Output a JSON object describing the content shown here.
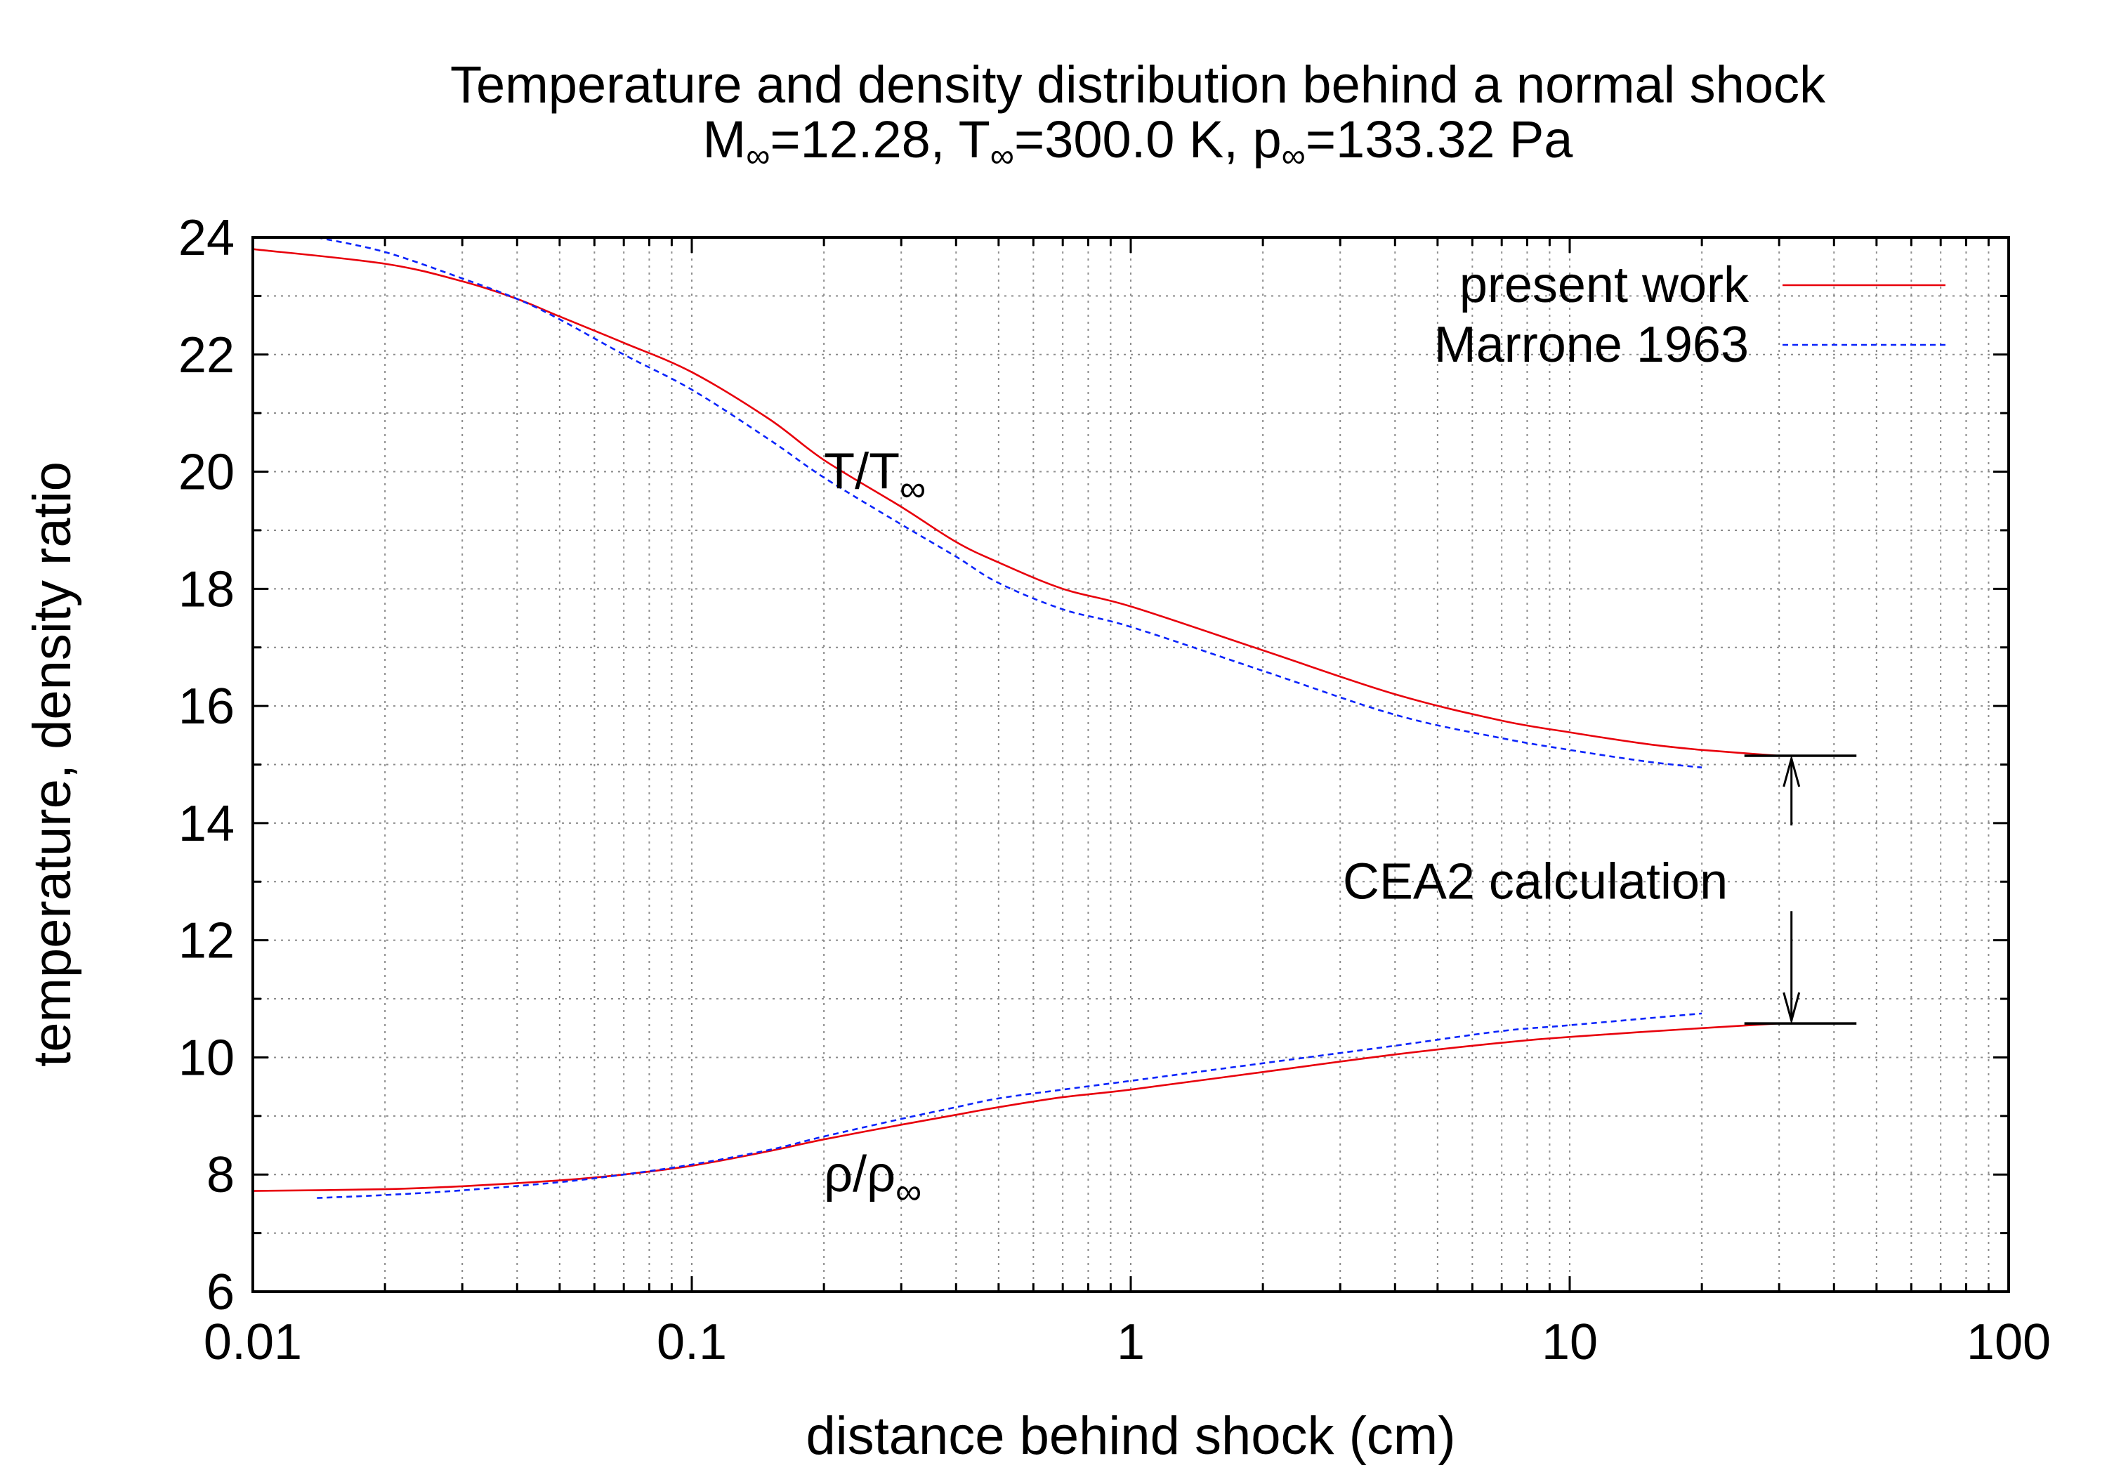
{
  "chart_data": {
    "type": "line",
    "title": "Temperature and density distribution behind a normal shock",
    "subtitle": {
      "parts": [
        "M",
        "∞",
        "=12.28, T",
        "∞",
        "=300.0 K, p",
        "∞",
        "=133.32 Pa"
      ]
    },
    "xlabel": "distance behind shock (cm)",
    "ylabel": "temperature, density ratio",
    "xscale": "log",
    "xlim": [
      0.01,
      100
    ],
    "ylim": [
      6,
      24
    ],
    "grid": true,
    "legend_position": "top-right",
    "xticks": [
      {
        "value": 0.01,
        "label": "0.01"
      },
      {
        "value": 0.1,
        "label": "0.1"
      },
      {
        "value": 1,
        "label": "1"
      },
      {
        "value": 10,
        "label": "10"
      },
      {
        "value": 100,
        "label": "100"
      }
    ],
    "yticks": [
      {
        "value": 6,
        "label": "6"
      },
      {
        "value": 8,
        "label": "8"
      },
      {
        "value": 10,
        "label": "10"
      },
      {
        "value": 12,
        "label": "12"
      },
      {
        "value": 14,
        "label": "14"
      },
      {
        "value": 16,
        "label": "16"
      },
      {
        "value": 18,
        "label": "18"
      },
      {
        "value": 20,
        "label": "20"
      },
      {
        "value": 22,
        "label": "22"
      },
      {
        "value": 24,
        "label": "24"
      }
    ],
    "series": [
      {
        "name": "present work",
        "quantity": "T",
        "color": "#e8000b",
        "dash": "solid",
        "x": [
          0.01,
          0.02,
          0.03,
          0.04,
          0.05,
          0.07,
          0.1,
          0.15,
          0.2,
          0.3,
          0.4,
          0.5,
          0.7,
          1,
          2,
          4,
          7,
          10,
          15,
          20,
          30
        ],
        "y": [
          23.8,
          23.55,
          23.25,
          22.95,
          22.65,
          22.2,
          21.7,
          20.9,
          20.2,
          19.4,
          18.8,
          18.45,
          18.0,
          17.7,
          16.95,
          16.2,
          15.75,
          15.55,
          15.35,
          15.25,
          15.15
        ]
      },
      {
        "name": "Marrone 1963",
        "quantity": "T",
        "color": "#0b24fb",
        "dash": "dashed",
        "x": [
          0.014,
          0.02,
          0.03,
          0.04,
          0.05,
          0.07,
          0.1,
          0.15,
          0.2,
          0.3,
          0.4,
          0.5,
          0.7,
          1,
          2,
          4,
          7,
          10,
          15,
          20
        ],
        "y": [
          24.0,
          23.75,
          23.3,
          22.95,
          22.6,
          22.0,
          21.4,
          20.55,
          19.9,
          19.1,
          18.55,
          18.1,
          17.65,
          17.35,
          16.6,
          15.85,
          15.45,
          15.25,
          15.05,
          14.95
        ]
      },
      {
        "name": "present work",
        "quantity": "rho",
        "color": "#e8000b",
        "dash": "solid",
        "x": [
          0.01,
          0.02,
          0.03,
          0.05,
          0.07,
          0.1,
          0.15,
          0.2,
          0.3,
          0.4,
          0.5,
          0.7,
          1,
          2,
          4,
          7,
          10,
          20,
          30
        ],
        "y": [
          7.72,
          7.75,
          7.8,
          7.9,
          8.0,
          8.15,
          8.4,
          8.6,
          8.85,
          9.02,
          9.15,
          9.32,
          9.45,
          9.75,
          10.05,
          10.25,
          10.35,
          10.5,
          10.58
        ]
      },
      {
        "name": "Marrone 1963",
        "quantity": "rho",
        "color": "#0b24fb",
        "dash": "dashed",
        "x": [
          0.014,
          0.02,
          0.03,
          0.05,
          0.07,
          0.1,
          0.15,
          0.2,
          0.3,
          0.4,
          0.5,
          0.7,
          1,
          2,
          4,
          7,
          10,
          20
        ],
        "y": [
          7.6,
          7.65,
          7.73,
          7.87,
          8.0,
          8.17,
          8.42,
          8.65,
          8.95,
          9.15,
          9.3,
          9.45,
          9.6,
          9.9,
          10.2,
          10.45,
          10.55,
          10.75
        ]
      }
    ],
    "legend": [
      {
        "label": "present work",
        "color": "#e8000b",
        "dash": "solid"
      },
      {
        "label": "Marrone 1963",
        "color": "#0b24fb",
        "dash": "dashed"
      }
    ],
    "annotations": {
      "temperature_label": {
        "main": "T/T",
        "sub": "∞",
        "x": 0.2,
        "y": 20.0
      },
      "density_label": {
        "main": "ρ/ρ",
        "sub": "∞",
        "x": 0.2,
        "y": 8.0
      },
      "cea2": {
        "label": "CEA2 calculation",
        "x": 32,
        "x_from": 25,
        "x_to": 45,
        "upper_value": 15.15,
        "lower_value": 10.58,
        "label_y": 13.0
      }
    }
  }
}
